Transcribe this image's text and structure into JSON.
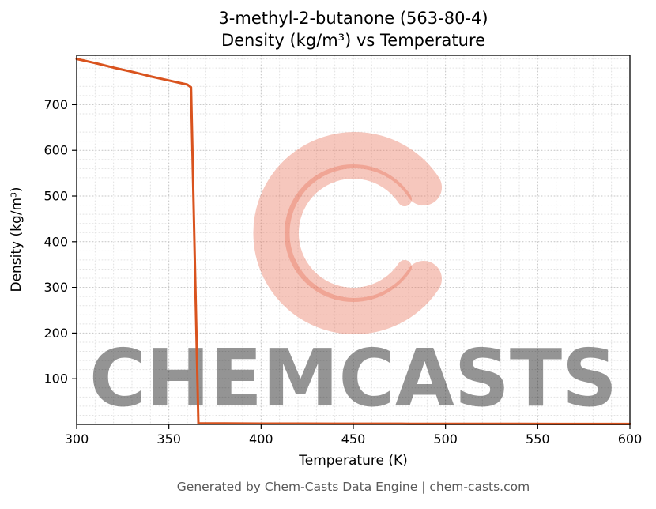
{
  "title_line1": "3-methyl-2-butanone (563-80-4)",
  "title_line2": "Density (kg/m³) vs Temperature",
  "footer": "Generated by Chem-Casts Data Engine | chem-casts.com",
  "watermark": {
    "text": "CHEMCASTS",
    "letter": "C",
    "color": "#e8735a"
  },
  "chart_data": {
    "type": "line",
    "title": "3-methyl-2-butanone (563-80-4) — Density (kg/m³) vs Temperature",
    "xlabel": "Temperature (K)",
    "ylabel": "Density (kg/m³)",
    "xlim": [
      300,
      600
    ],
    "ylim": [
      0,
      808
    ],
    "x_ticks": [
      300,
      350,
      400,
      450,
      500,
      550,
      600
    ],
    "y_ticks": [
      100,
      200,
      300,
      400,
      500,
      600,
      700
    ],
    "grid": true,
    "grid_style": "dotted",
    "legend": "none",
    "line_color": "#d9531e",
    "line_width": 3,
    "series": [
      {
        "name": "Density",
        "points": [
          [
            300,
            800
          ],
          [
            310,
            791
          ],
          [
            320,
            781
          ],
          [
            330,
            772
          ],
          [
            340,
            762
          ],
          [
            350,
            753
          ],
          [
            360,
            744
          ],
          [
            362,
            738
          ],
          [
            366,
            2
          ],
          [
            380,
            2
          ],
          [
            400,
            1.8
          ],
          [
            420,
            1.7
          ],
          [
            440,
            1.6
          ],
          [
            460,
            1.5
          ],
          [
            480,
            1.4
          ],
          [
            500,
            1.3
          ],
          [
            520,
            1.2
          ],
          [
            540,
            1.2
          ],
          [
            560,
            1.1
          ],
          [
            580,
            1.1
          ],
          [
            600,
            1.0
          ]
        ]
      }
    ]
  }
}
